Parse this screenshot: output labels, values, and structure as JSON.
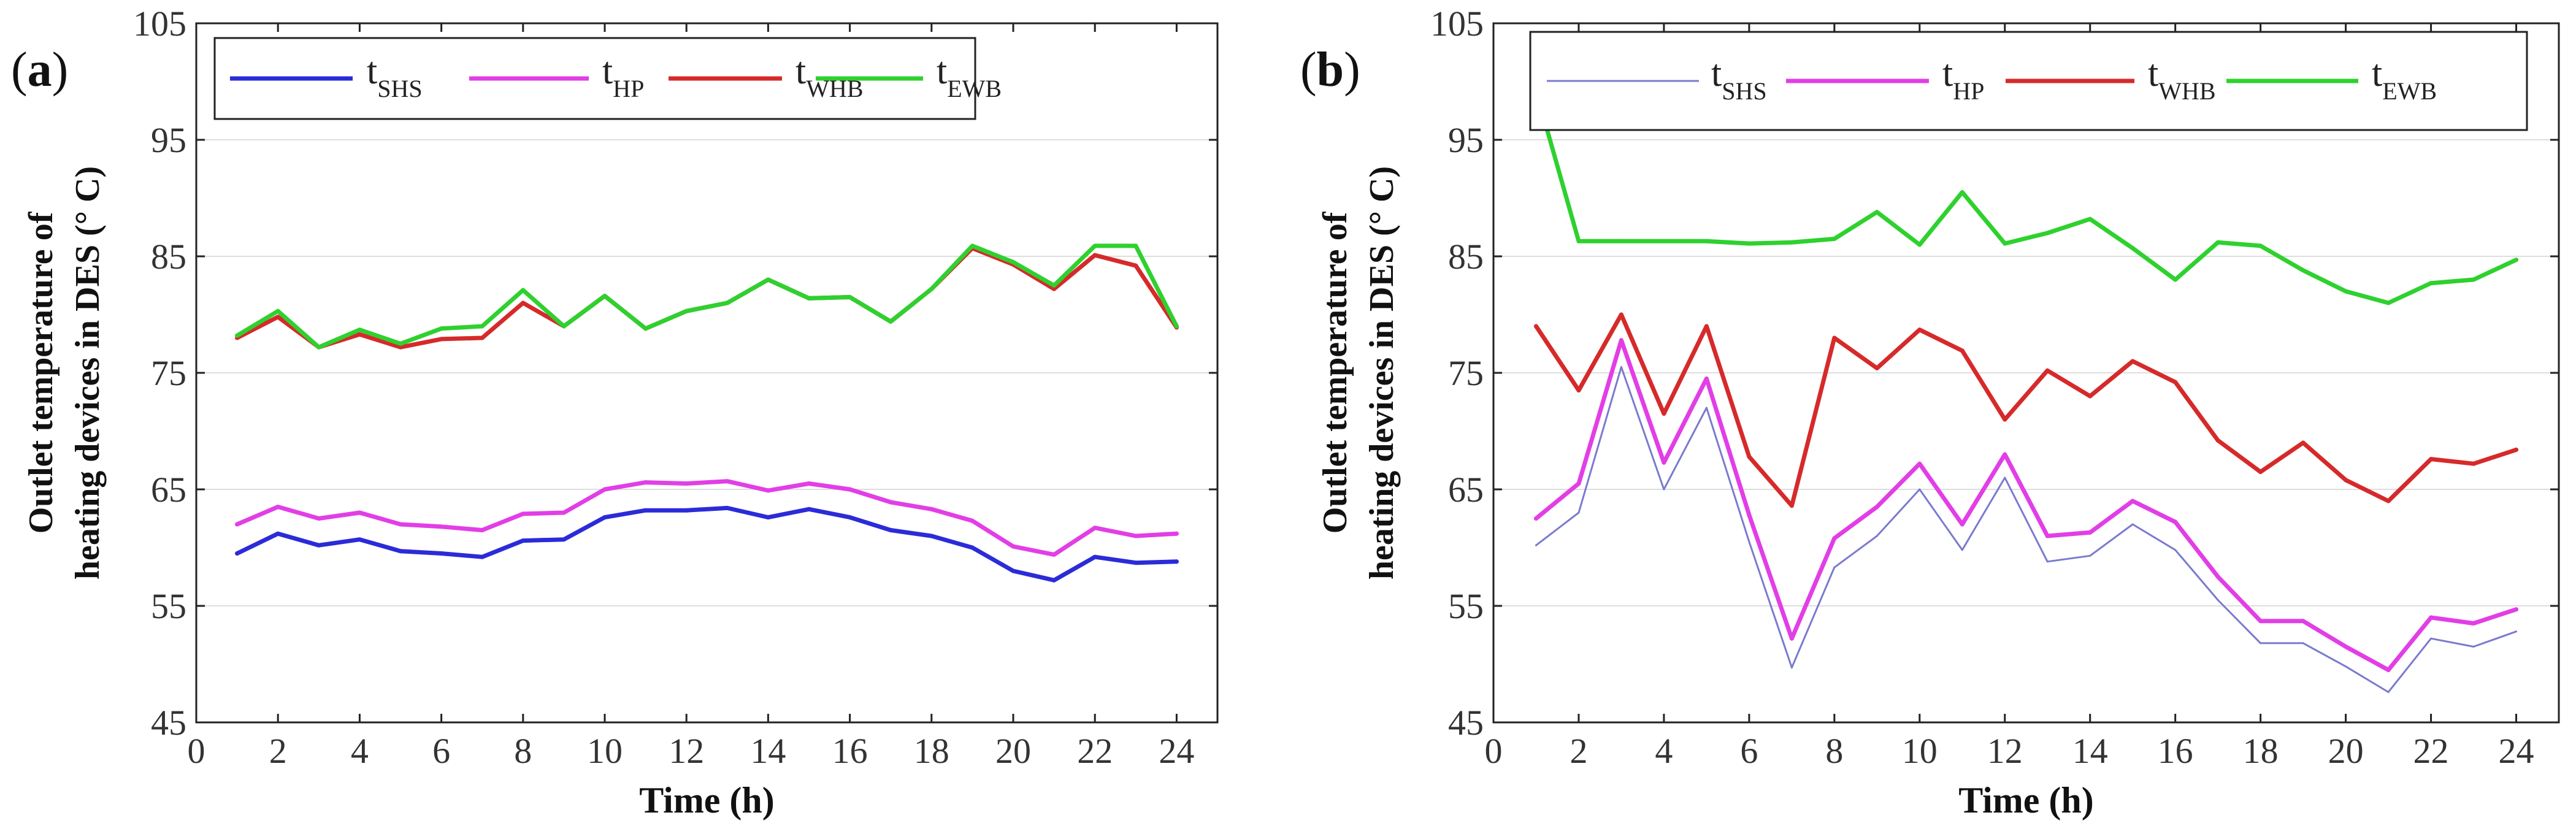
{
  "figure": {
    "panel_labels": [
      "(a)",
      "(b)"
    ]
  },
  "chart_data": [
    {
      "type": "line",
      "panel_label": "(a)",
      "xlabel": "Time (h)",
      "ylabel_lines": [
        "Outlet temperature of",
        "heating devices in DES (° C)"
      ],
      "xlim": [
        0,
        25
      ],
      "ylim": [
        45,
        105
      ],
      "xticks": [
        0,
        2,
        4,
        6,
        8,
        10,
        12,
        14,
        16,
        18,
        20,
        22,
        24
      ],
      "yticks": [
        45,
        55,
        65,
        75,
        85,
        95,
        105
      ],
      "grid": "horizontal",
      "legend": {
        "position": "top",
        "layout": "horizontal"
      },
      "x": [
        1,
        2,
        3,
        4,
        5,
        6,
        7,
        8,
        9,
        10,
        11,
        12,
        13,
        14,
        15,
        16,
        17,
        18,
        19,
        20,
        21,
        22,
        23,
        24
      ],
      "series": [
        {
          "name": "t",
          "subscript": "SHS",
          "color": "#2b2bd9",
          "style": "thick",
          "values": [
            59.5,
            61.2,
            60.2,
            60.7,
            59.7,
            59.5,
            59.2,
            60.6,
            60.7,
            62.6,
            63.2,
            63.2,
            63.4,
            62.6,
            63.3,
            62.6,
            61.5,
            61.0,
            60.0,
            58.0,
            57.2,
            59.2,
            58.7,
            58.8
          ]
        },
        {
          "name": "t",
          "subscript": "HP",
          "color": "#e23ee6",
          "style": "thick",
          "values": [
            62.0,
            63.5,
            62.5,
            63.0,
            62.0,
            61.8,
            61.5,
            62.9,
            63.0,
            65.0,
            65.6,
            65.5,
            65.7,
            64.9,
            65.5,
            65.0,
            63.9,
            63.3,
            62.3,
            60.1,
            59.4,
            61.7,
            61.0,
            61.2
          ]
        },
        {
          "name": "t",
          "subscript": "WHB",
          "color": "#d62a2a",
          "style": "thick",
          "values": [
            78.0,
            79.8,
            77.2,
            78.3,
            77.2,
            77.9,
            78.0,
            81.0,
            79.0,
            81.6,
            78.8,
            80.3,
            81.0,
            83.0,
            81.4,
            81.5,
            79.4,
            82.2,
            85.7,
            84.3,
            82.2,
            85.1,
            84.2,
            78.9
          ]
        },
        {
          "name": "t",
          "subscript": "EWB",
          "color": "#2ed12e",
          "style": "thick",
          "values": [
            78.2,
            80.3,
            77.2,
            78.7,
            77.5,
            78.8,
            79.0,
            82.1,
            79.0,
            81.6,
            78.8,
            80.3,
            81.0,
            83.0,
            81.4,
            81.5,
            79.4,
            82.2,
            85.9,
            84.5,
            82.5,
            85.9,
            85.9,
            79.0
          ]
        }
      ]
    },
    {
      "type": "line",
      "panel_label": "(b)",
      "xlabel": "Time (h)",
      "ylabel_lines": [
        "Outlet temperature of",
        "heating devices in DES (° C)"
      ],
      "xlim": [
        0,
        25
      ],
      "ylim": [
        45,
        105
      ],
      "xticks": [
        0,
        2,
        4,
        6,
        8,
        10,
        12,
        14,
        16,
        18,
        20,
        22,
        24
      ],
      "yticks": [
        45,
        55,
        65,
        75,
        85,
        95,
        105
      ],
      "grid": "horizontal",
      "legend": {
        "position": "top",
        "layout": "horizontal"
      },
      "x": [
        1,
        2,
        3,
        4,
        5,
        6,
        7,
        8,
        9,
        10,
        11,
        12,
        13,
        14,
        15,
        16,
        17,
        18,
        19,
        20,
        21,
        22,
        23,
        24
      ],
      "series": [
        {
          "name": "t",
          "subscript": "SHS",
          "color": "#7a7acf",
          "style": "thin",
          "values": [
            60.2,
            63.0,
            75.5,
            65.0,
            72.0,
            60.5,
            49.7,
            58.3,
            61.0,
            65.0,
            59.8,
            66.0,
            58.8,
            59.3,
            62.0,
            59.8,
            55.5,
            51.8,
            51.8,
            49.8,
            47.6,
            52.2,
            51.5,
            52.8
          ]
        },
        {
          "name": "t",
          "subscript": "HP",
          "color": "#e23ee6",
          "style": "thick",
          "values": [
            62.5,
            65.5,
            77.8,
            67.3,
            74.5,
            62.8,
            52.2,
            60.8,
            63.5,
            67.2,
            62.0,
            68.0,
            61.0,
            61.3,
            64.0,
            62.2,
            57.5,
            53.7,
            53.7,
            51.5,
            49.5,
            54.0,
            53.5,
            54.7
          ]
        },
        {
          "name": "t",
          "subscript": "WHB",
          "color": "#d62a2a",
          "style": "thick",
          "values": [
            79.0,
            73.5,
            80.0,
            71.5,
            79.0,
            67.8,
            63.6,
            78.0,
            75.4,
            78.7,
            76.9,
            71.0,
            75.2,
            73.0,
            76.0,
            74.2,
            69.2,
            66.5,
            69.0,
            65.8,
            64.0,
            67.6,
            67.2,
            68.4
          ]
        },
        {
          "name": "t",
          "subscript": "EWB",
          "color": "#2ed12e",
          "style": "thick",
          "values": [
            99.2,
            86.3,
            86.3,
            86.3,
            86.3,
            86.1,
            86.2,
            86.5,
            88.8,
            86.0,
            90.5,
            86.1,
            87.0,
            88.2,
            85.7,
            83.0,
            86.2,
            85.9,
            83.8,
            82.0,
            81.0,
            82.7,
            83.0,
            84.7
          ]
        }
      ]
    }
  ]
}
